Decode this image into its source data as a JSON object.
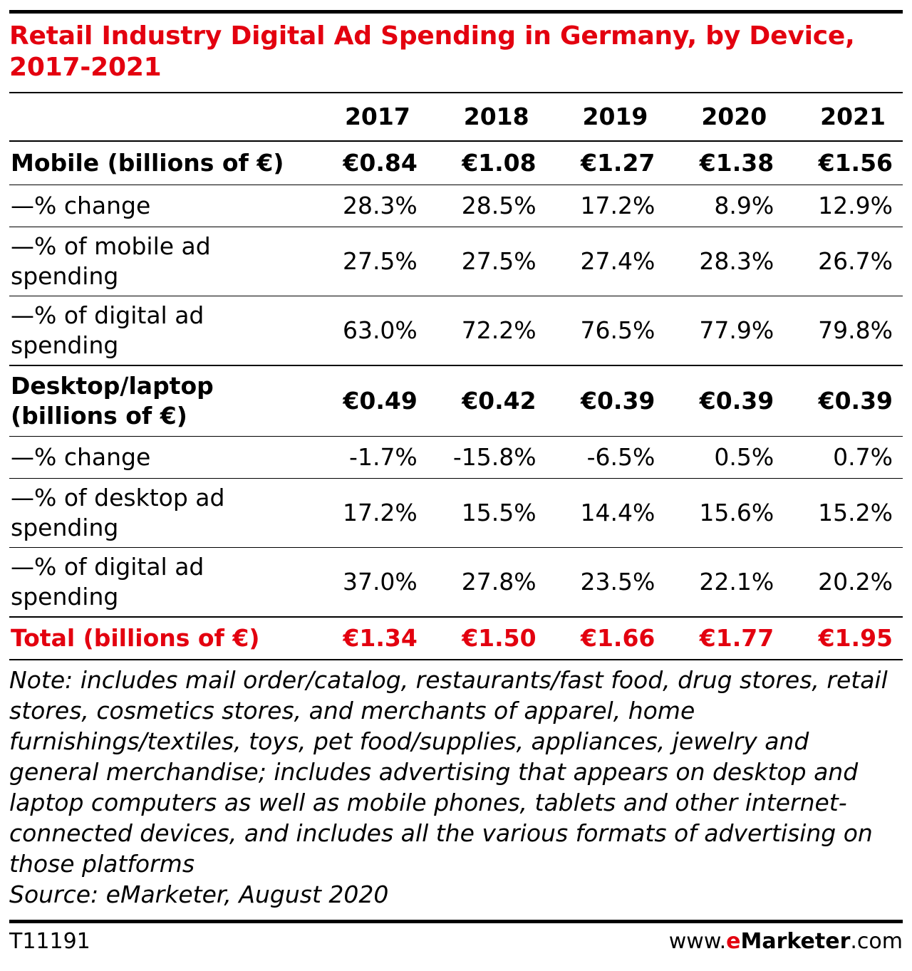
{
  "chart_data": {
    "type": "table",
    "title": "Retail Industry Digital Ad Spending in Germany, by Device, 2017-2021",
    "columns": [
      "2017",
      "2018",
      "2019",
      "2020",
      "2021"
    ],
    "rows": [
      {
        "label": "Mobile (billions of €)",
        "values": [
          "€0.84",
          "€1.08",
          "€1.27",
          "€1.38",
          "€1.56"
        ]
      },
      {
        "label": "—% change",
        "values": [
          "28.3%",
          "28.5%",
          "17.2%",
          "8.9%",
          "12.9%"
        ]
      },
      {
        "label": "—% of mobile ad spending",
        "values": [
          "27.5%",
          "27.5%",
          "27.4%",
          "28.3%",
          "26.7%"
        ]
      },
      {
        "label": "—% of digital ad spending",
        "values": [
          "63.0%",
          "72.2%",
          "76.5%",
          "77.9%",
          "79.8%"
        ]
      },
      {
        "label": "Desktop/laptop (billions of €)",
        "values": [
          "€0.49",
          "€0.42",
          "€0.39",
          "€0.39",
          "€0.39"
        ]
      },
      {
        "label": "—% change",
        "values": [
          "-1.7%",
          "-15.8%",
          "-6.5%",
          "0.5%",
          "0.7%"
        ]
      },
      {
        "label": "—% of desktop ad spending",
        "values": [
          "17.2%",
          "15.5%",
          "14.4%",
          "15.6%",
          "15.2%"
        ]
      },
      {
        "label": "—% of digital ad spending",
        "values": [
          "37.0%",
          "27.8%",
          "23.5%",
          "22.1%",
          "20.2%"
        ]
      },
      {
        "label": "Total (billions of €)",
        "values": [
          "€1.34",
          "€1.50",
          "€1.66",
          "€1.77",
          "€1.95"
        ]
      }
    ],
    "note": "Note: includes mail order/catalog, restaurants/fast food, drug stores, retail stores, cosmetics stores, and merchants of apparel, home furnishings/textiles, toys, pet food/supplies, appliances, jewelry and general merchandise; includes advertising that appears on desktop and laptop computers as well as mobile phones, tablets and other internet-connected devices, and includes all the various formats of advertising on those platforms",
    "source": "Source: eMarketer, August 2020"
  },
  "footer": {
    "table_id": "T11191",
    "brand_prefix": "www.",
    "brand_e": "e",
    "brand_name": "Marketer",
    "brand_suffix": ".com"
  },
  "colors": {
    "accent": "#e3000f",
    "text": "#000000"
  }
}
